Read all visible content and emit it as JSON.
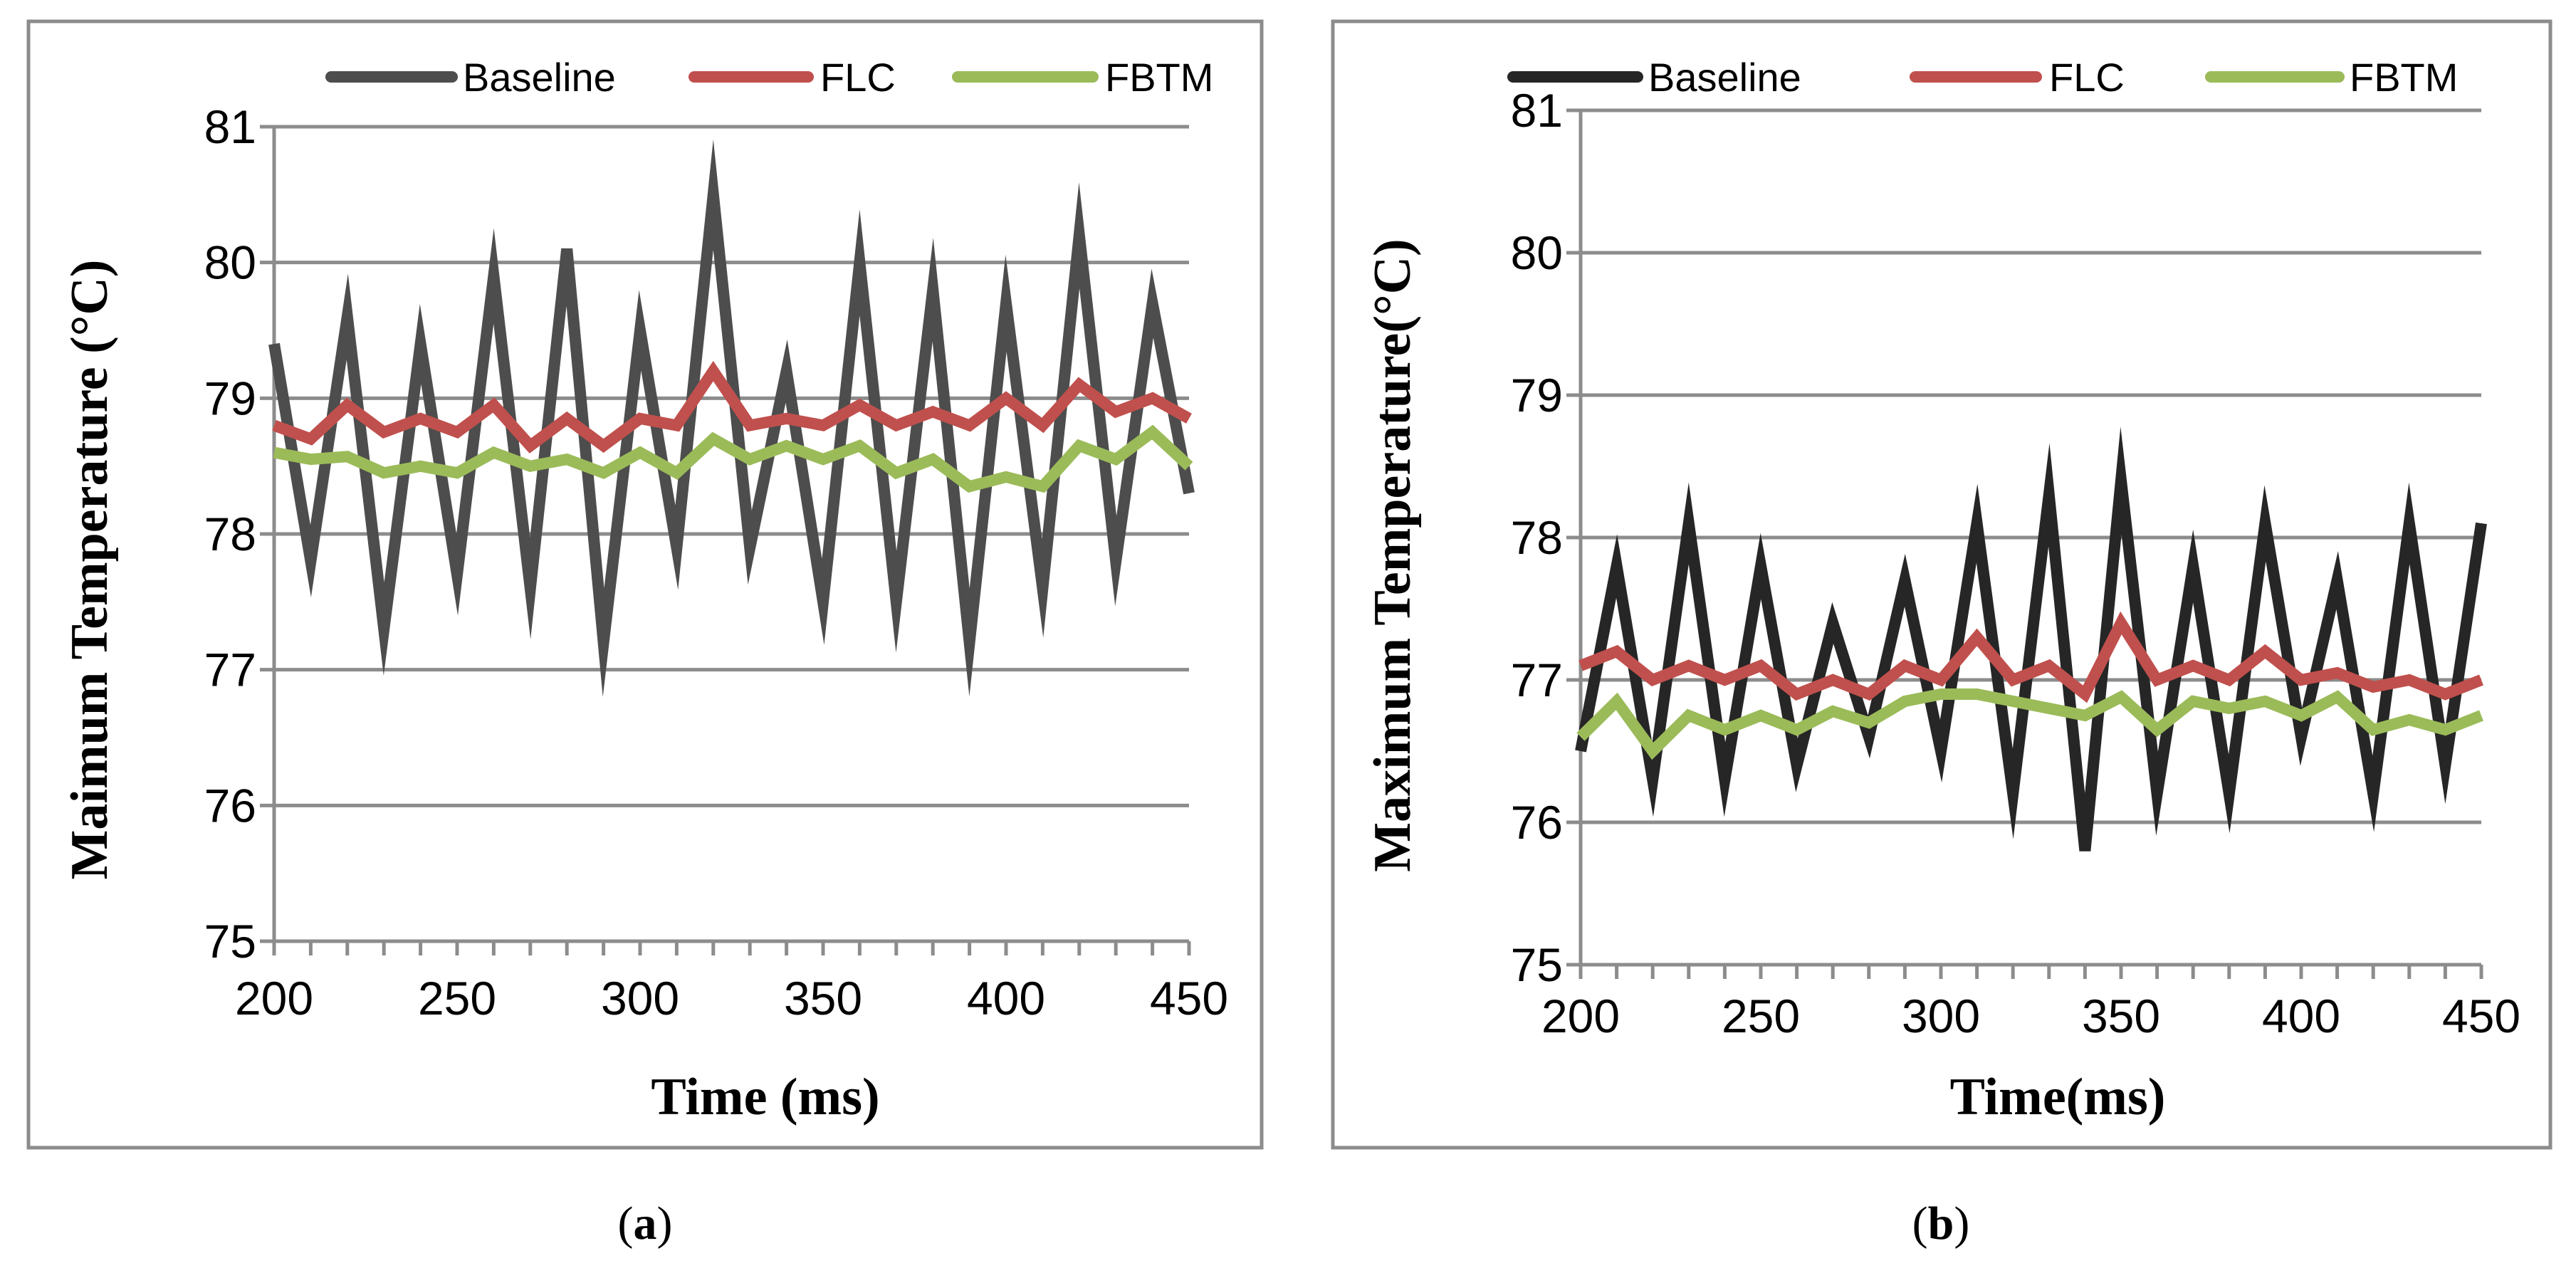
{
  "chart_data": [
    {
      "type": "line",
      "panel_label": "a",
      "xlabel": "Time (ms)",
      "ylabel": "Maimum Temperature (°C)",
      "xlim": [
        200,
        450
      ],
      "ylim": [
        75,
        81
      ],
      "xticks": [
        200,
        250,
        300,
        350,
        400,
        450
      ],
      "yticks": [
        75,
        76,
        77,
        78,
        79,
        80,
        81
      ],
      "grid": "horizontal",
      "legend_position": "top",
      "x": [
        200,
        210,
        220,
        230,
        240,
        250,
        260,
        270,
        280,
        290,
        300,
        310,
        320,
        330,
        340,
        350,
        360,
        370,
        380,
        390,
        400,
        410,
        420,
        430,
        440,
        450
      ],
      "series": [
        {
          "name": "Baseline",
          "color": "#4d4d4d",
          "values": [
            79.4,
            77.8,
            79.6,
            77.3,
            79.4,
            77.7,
            79.9,
            77.6,
            80.1,
            77.2,
            79.5,
            77.9,
            80.5,
            77.9,
            79.2,
            77.5,
            80.0,
            77.5,
            79.8,
            77.2,
            79.7,
            77.6,
            80.2,
            77.8,
            79.7,
            78.3
          ]
        },
        {
          "name": "FLC",
          "color": "#c0504d",
          "values": [
            78.8,
            78.7,
            78.95,
            78.75,
            78.85,
            78.75,
            78.95,
            78.65,
            78.85,
            78.65,
            78.85,
            78.8,
            79.2,
            78.8,
            78.85,
            78.8,
            78.95,
            78.8,
            78.9,
            78.8,
            79.0,
            78.8,
            79.1,
            78.9,
            79.0,
            78.85
          ]
        },
        {
          "name": "FBTM",
          "color": "#9bbb59",
          "values": [
            78.6,
            78.55,
            78.57,
            78.45,
            78.5,
            78.45,
            78.6,
            78.5,
            78.55,
            78.45,
            78.6,
            78.45,
            78.7,
            78.55,
            78.65,
            78.55,
            78.65,
            78.45,
            78.55,
            78.35,
            78.42,
            78.35,
            78.65,
            78.55,
            78.75,
            78.5
          ]
        }
      ]
    },
    {
      "type": "line",
      "panel_label": "b",
      "xlabel": "Time(ms)",
      "ylabel": "Maximum Temperature(°C)",
      "xlim": [
        200,
        450
      ],
      "ylim": [
        75,
        81
      ],
      "xticks": [
        200,
        250,
        300,
        350,
        400,
        450
      ],
      "yticks": [
        75,
        76,
        77,
        78,
        79,
        80,
        81
      ],
      "grid": "horizontal",
      "legend_position": "top",
      "x": [
        200,
        210,
        220,
        230,
        240,
        250,
        260,
        270,
        280,
        290,
        300,
        310,
        320,
        330,
        340,
        350,
        360,
        370,
        380,
        390,
        400,
        410,
        420,
        430,
        440,
        450
      ],
      "series": [
        {
          "name": "Baseline",
          "color": "#262626",
          "values": [
            76.5,
            77.8,
            76.3,
            78.1,
            76.3,
            77.8,
            76.4,
            77.4,
            76.6,
            77.7,
            76.5,
            78.1,
            76.2,
            78.3,
            75.8,
            78.4,
            76.2,
            77.8,
            76.2,
            78.1,
            76.6,
            77.7,
            76.2,
            78.1,
            76.4,
            78.1
          ]
        },
        {
          "name": "FLC",
          "color": "#c0504d",
          "values": [
            77.1,
            77.2,
            77.0,
            77.1,
            77.0,
            77.1,
            76.9,
            77.0,
            76.9,
            77.1,
            77.0,
            77.3,
            77.0,
            77.1,
            76.9,
            77.4,
            77.0,
            77.1,
            77.0,
            77.2,
            77.0,
            77.05,
            76.95,
            77.0,
            76.9,
            77.0
          ]
        },
        {
          "name": "FBTM",
          "color": "#9bbb59",
          "values": [
            76.6,
            76.85,
            76.5,
            76.75,
            76.65,
            76.75,
            76.65,
            76.78,
            76.7,
            76.85,
            76.9,
            76.9,
            76.85,
            76.8,
            76.75,
            76.88,
            76.65,
            76.85,
            76.8,
            76.85,
            76.75,
            76.88,
            76.65,
            76.72,
            76.65,
            76.75
          ]
        }
      ]
    }
  ]
}
